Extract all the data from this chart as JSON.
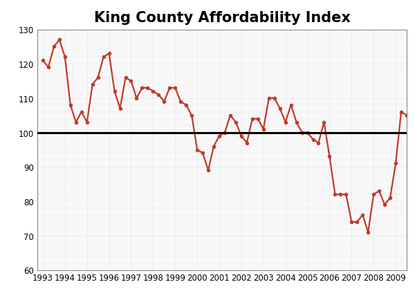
{
  "title": "King County Affordability Index",
  "xlim": [
    1992.75,
    2009.5
  ],
  "ylim": [
    60,
    130
  ],
  "yticks": [
    60,
    70,
    80,
    90,
    100,
    110,
    120,
    130
  ],
  "xticks": [
    1993,
    1994,
    1995,
    1996,
    1997,
    1998,
    1999,
    2000,
    2001,
    2002,
    2003,
    2004,
    2005,
    2006,
    2007,
    2008,
    2009
  ],
  "reference_line": 100,
  "line_color": "#c0392b",
  "marker": "o",
  "marker_size": 3.5,
  "line_width": 1.6,
  "background_color": "#ffffff",
  "plot_bg_color": "#f8f8f8",
  "title_fontsize": 15,
  "tick_fontsize": 8.5,
  "years": [
    1993.0,
    1993.25,
    1993.5,
    1993.75,
    1994.0,
    1994.25,
    1994.5,
    1994.75,
    1995.0,
    1995.25,
    1995.5,
    1995.75,
    1996.0,
    1996.25,
    1996.5,
    1996.75,
    1997.0,
    1997.25,
    1997.5,
    1997.75,
    1998.0,
    1998.25,
    1998.5,
    1998.75,
    1999.0,
    1999.25,
    1999.5,
    1999.75,
    2000.0,
    2000.25,
    2000.5,
    2000.75,
    2001.0,
    2001.25,
    2001.5,
    2001.75,
    2002.0,
    2002.25,
    2002.5,
    2002.75,
    2003.0,
    2003.25,
    2003.5,
    2003.75,
    2004.0,
    2004.25,
    2004.5,
    2004.75,
    2005.0,
    2005.25,
    2005.5,
    2005.75,
    2006.0,
    2006.25,
    2006.5,
    2006.75,
    2007.0,
    2007.25,
    2007.5,
    2007.75,
    2008.0,
    2008.25,
    2008.5,
    2008.75,
    2009.0,
    2009.25,
    2009.5
  ],
  "values": [
    121,
    119,
    125,
    127,
    122,
    108,
    103,
    106,
    103,
    114,
    116,
    122,
    123,
    112,
    107,
    116,
    115,
    110,
    113,
    113,
    112,
    111,
    109,
    113,
    113,
    109,
    108,
    105,
    95,
    94,
    89,
    96,
    99,
    100,
    105,
    103,
    99,
    97,
    104,
    104,
    101,
    110,
    110,
    107,
    103,
    108,
    103,
    100,
    100,
    98,
    97,
    103,
    93,
    82,
    82,
    82,
    74,
    74,
    76,
    71,
    82,
    83,
    79,
    81,
    91,
    106,
    105
  ]
}
